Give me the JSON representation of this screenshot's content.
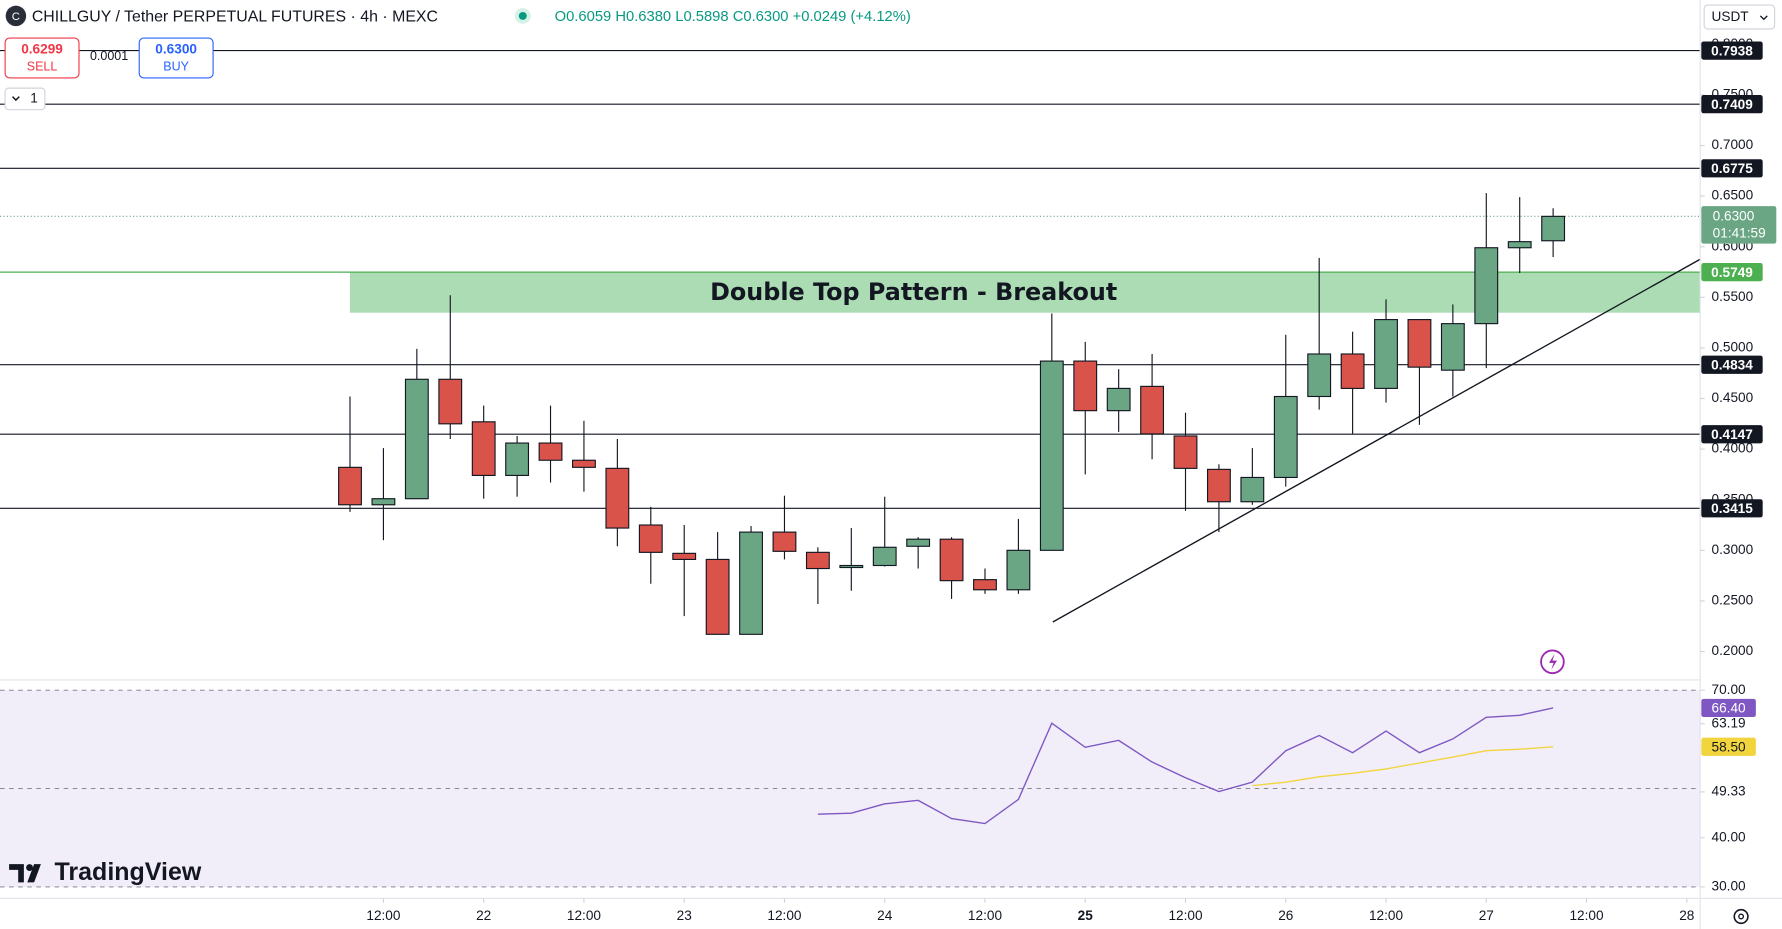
{
  "header": {
    "symbol": "CHILLGUY / Tether PERPETUAL FUTURES · 4h · MEXC",
    "ohlc": "O0.6059 H0.6380 L0.5898 C0.6300 +0.0249 (+4.12%)"
  },
  "trade": {
    "sell_price": "0.6299",
    "sell": "SELL",
    "spread": "0.0001",
    "buy_price": "0.6300",
    "buy": "BUY",
    "quantity": "1"
  },
  "currency": "USDT",
  "logo": "TradingView",
  "chart_data": [
    {
      "type": "candlestick",
      "x": [
        0,
        1,
        2,
        3,
        4,
        5,
        6,
        7,
        8,
        9,
        10,
        11,
        12,
        13,
        14,
        15,
        16,
        17,
        18,
        19,
        20,
        21,
        22,
        23,
        24,
        25,
        26,
        27,
        28,
        29,
        30,
        31,
        32,
        33,
        34,
        35,
        36
      ],
      "open": [
        0.382,
        0.345,
        0.351,
        0.469,
        0.427,
        0.374,
        0.406,
        0.389,
        0.381,
        0.325,
        0.297,
        0.291,
        0.217,
        0.318,
        0.298,
        0.283,
        0.285,
        0.304,
        0.311,
        0.271,
        0.261,
        0.3,
        0.487,
        0.438,
        0.462,
        0.413,
        0.38,
        0.348,
        0.372,
        0.452,
        0.494,
        0.46,
        0.528,
        0.478,
        0.524,
        0.599,
        0.6059
      ],
      "high": [
        0.452,
        0.401,
        0.499,
        0.552,
        0.443,
        0.413,
        0.443,
        0.428,
        0.41,
        0.343,
        0.325,
        0.318,
        0.324,
        0.354,
        0.303,
        0.322,
        0.353,
        0.313,
        0.313,
        0.282,
        0.331,
        0.534,
        0.506,
        0.479,
        0.494,
        0.436,
        0.385,
        0.401,
        0.513,
        0.589,
        0.516,
        0.548,
        0.528,
        0.543,
        0.653,
        0.649,
        0.638
      ],
      "low": [
        0.338,
        0.31,
        0.351,
        0.41,
        0.351,
        0.353,
        0.367,
        0.358,
        0.304,
        0.267,
        0.235,
        0.217,
        0.217,
        0.291,
        0.247,
        0.26,
        0.284,
        0.282,
        0.252,
        0.257,
        0.257,
        0.3,
        0.375,
        0.417,
        0.39,
        0.339,
        0.318,
        0.345,
        0.363,
        0.439,
        0.415,
        0.446,
        0.424,
        0.452,
        0.48,
        0.574,
        0.5898
      ],
      "close": [
        0.345,
        0.351,
        0.469,
        0.425,
        0.374,
        0.406,
        0.389,
        0.382,
        0.322,
        0.298,
        0.291,
        0.217,
        0.318,
        0.299,
        0.282,
        0.285,
        0.303,
        0.311,
        0.27,
        0.261,
        0.3,
        0.487,
        0.438,
        0.46,
        0.415,
        0.381,
        0.348,
        0.372,
        0.452,
        0.494,
        0.46,
        0.528,
        0.481,
        0.524,
        0.599,
        0.605,
        0.63
      ],
      "up_color": "#6aa684",
      "down_color": "#d9534a",
      "xlim": [
        -10.473,
        40.4
      ],
      "xticks": [
        {
          "value": 1,
          "label": "12:00"
        },
        {
          "value": 4,
          "label": "22"
        },
        {
          "value": 7,
          "label": "12:00"
        },
        {
          "value": 10,
          "label": "23"
        },
        {
          "value": 13,
          "label": "12:00"
        },
        {
          "value": 16,
          "label": "24"
        },
        {
          "value": 19,
          "label": "12:00"
        },
        {
          "value": 22,
          "label": "25"
        },
        {
          "value": 25,
          "label": "12:00"
        },
        {
          "value": 28,
          "label": "26"
        },
        {
          "value": 31,
          "label": "12:00"
        },
        {
          "value": 34,
          "label": "27"
        },
        {
          "value": 37,
          "label": "12:00"
        },
        {
          "value": 40,
          "label": "28"
        }
      ],
      "ylim": [
        0.173,
        0.8438
      ],
      "yticks": [
        {
          "value": 0.2,
          "label": "0.2000"
        },
        {
          "value": 0.25,
          "label": "0.2500"
        },
        {
          "value": 0.3,
          "label": "0.3000"
        },
        {
          "value": 0.35,
          "label": "0.3500"
        },
        {
          "value": 0.4,
          "label": "0.4000"
        },
        {
          "value": 0.45,
          "label": "0.4500"
        },
        {
          "value": 0.5,
          "label": "0.5000"
        },
        {
          "value": 0.55,
          "label": "0.5500"
        },
        {
          "value": 0.6,
          "label": "0.6000"
        },
        {
          "value": 0.65,
          "label": "0.6500"
        },
        {
          "value": 0.7,
          "label": "0.7000"
        },
        {
          "value": 0.75,
          "label": "0.7500"
        },
        {
          "value": 0.8,
          "label": "0.8000"
        }
      ],
      "levels": [
        0.7938,
        0.7409,
        0.6775,
        0.4834,
        0.4147,
        0.3415
      ],
      "level_color": "#131722",
      "last_price": {
        "value": 0.63,
        "label": "0.6300",
        "countdown": "01:41:59",
        "color": "#6aa684"
      },
      "zone": {
        "top": 0.5749,
        "bottom": 0.5348,
        "x_start": 0,
        "label": "Double Top Pattern - Breakout",
        "fill": "#acdcb3",
        "line_color": "#4caf50"
      },
      "trendline": {
        "x": [
          21.03,
          40.4
        ],
        "y": [
          0.2292,
          0.5876
        ]
      }
    },
    {
      "type": "line",
      "x": [
        0,
        1,
        2,
        3,
        4,
        5,
        6,
        7,
        8,
        9,
        10,
        11,
        12,
        13,
        14,
        15,
        16,
        17,
        18,
        19,
        20,
        21,
        22,
        23,
        24,
        25,
        26,
        27,
        28,
        29,
        30,
        31,
        32,
        33,
        34,
        35,
        36
      ],
      "series": [
        {
          "color": "#7e57c2",
          "values": [
            null,
            null,
            null,
            null,
            null,
            null,
            null,
            null,
            null,
            null,
            null,
            null,
            null,
            null,
            44.8,
            45.0,
            46.9,
            47.6,
            43.9,
            42.9,
            47.8,
            63.3,
            58.4,
            59.8,
            55.4,
            52.2,
            49.4,
            51.3,
            57.7,
            60.8,
            57.3,
            61.7,
            57.3,
            60.1,
            64.5,
            64.9,
            66.4
          ],
          "value_labels": [
            null,
            null,
            null,
            null,
            null,
            null,
            null,
            null,
            null,
            null,
            null,
            null,
            null,
            null,
            null,
            null,
            null,
            null,
            null,
            null,
            null,
            null,
            null,
            null,
            null,
            null,
            null,
            null,
            null,
            null,
            null,
            null,
            null,
            null,
            null,
            null,
            "66.40"
          ]
        },
        {
          "color": "#f2d43c",
          "values": [
            null,
            null,
            null,
            null,
            null,
            null,
            null,
            null,
            null,
            null,
            null,
            null,
            null,
            null,
            null,
            null,
            null,
            null,
            null,
            null,
            null,
            null,
            null,
            null,
            null,
            null,
            null,
            50.6,
            51.3,
            52.4,
            53.1,
            54.0,
            55.2,
            56.4,
            57.7,
            58.0,
            58.5
          ],
          "value_labels": [
            null,
            null,
            null,
            null,
            null,
            null,
            null,
            null,
            null,
            null,
            null,
            null,
            null,
            null,
            null,
            null,
            null,
            null,
            null,
            null,
            null,
            null,
            null,
            null,
            null,
            null,
            null,
            null,
            null,
            null,
            null,
            null,
            null,
            null,
            null,
            null,
            "58.50"
          ]
        }
      ],
      "xlim": [
        -10.473,
        40.4
      ],
      "ylim": [
        27.69,
        71.85
      ],
      "yticks": [
        {
          "value": 70,
          "label": "70.00"
        },
        63.19,
        49.33,
        {
          "value": 40,
          "label": "40.00"
        },
        {
          "value": 30,
          "label": "30.00"
        }
      ],
      "bands": [
        70,
        50,
        30
      ],
      "background": "#f1edf9"
    }
  ]
}
